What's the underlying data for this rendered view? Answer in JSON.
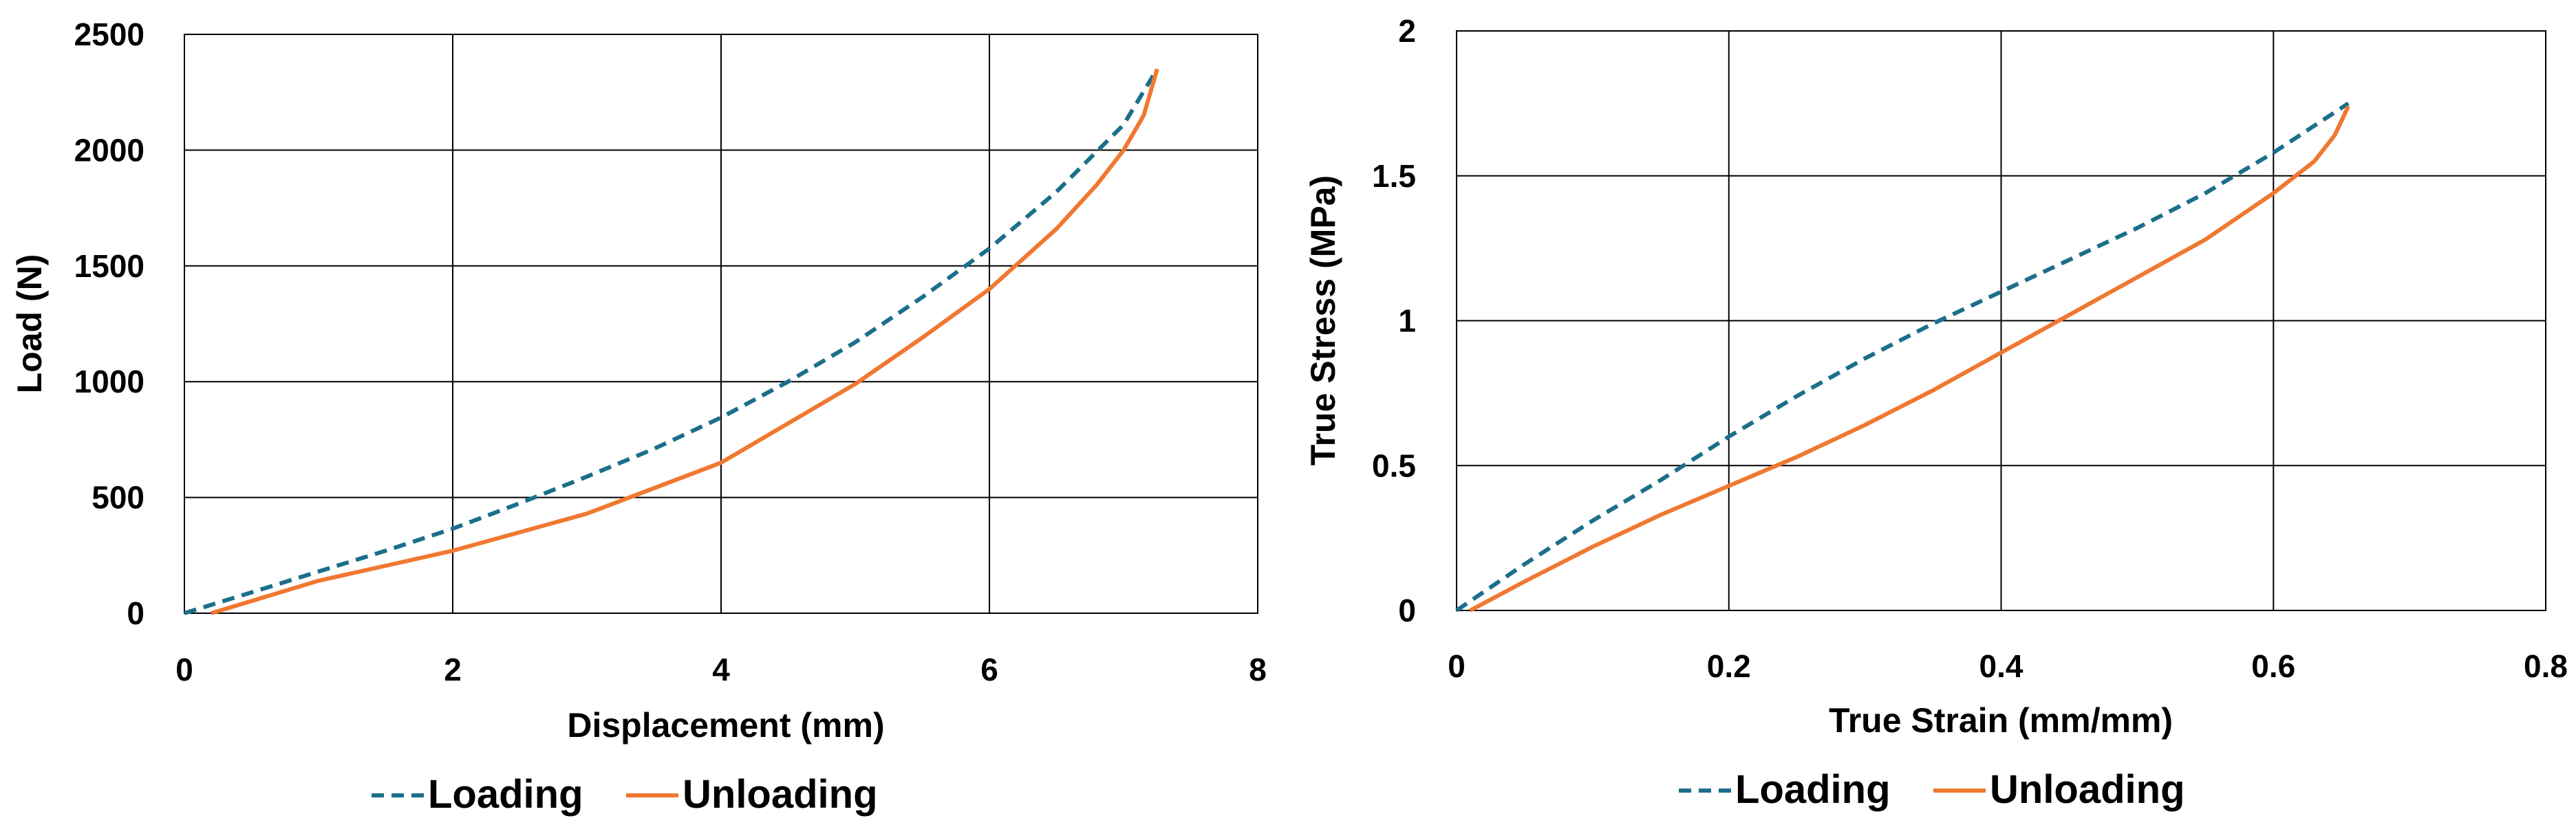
{
  "chart_data": [
    {
      "type": "line",
      "title": "",
      "xlabel": "Displacement (mm)",
      "ylabel": "Load (N)",
      "xlim": [
        0,
        8
      ],
      "ylim": [
        0,
        2500
      ],
      "xticks": [
        "0",
        "2",
        "4",
        "6",
        "8"
      ],
      "yticks": [
        "0",
        "500",
        "1000",
        "1500",
        "2000",
        "2500"
      ],
      "grid": true,
      "legend_position": "bottom-center",
      "series": [
        {
          "name": "Loading",
          "color": "#1b6f8a",
          "style": "dashed",
          "x": [
            0,
            0.5,
            1,
            1.5,
            2,
            2.5,
            3,
            3.5,
            4,
            4.5,
            5,
            5.5,
            6,
            6.5,
            7,
            7.25
          ],
          "y": [
            0,
            90,
            180,
            270,
            365,
            475,
            590,
            710,
            845,
            1000,
            1170,
            1365,
            1575,
            1820,
            2110,
            2350
          ]
        },
        {
          "name": "Unloading",
          "color": "#f07830",
          "style": "solid",
          "x": [
            0.2,
            1,
            2,
            3,
            4,
            5,
            5.5,
            6,
            6.5,
            6.8,
            7,
            7.15,
            7.25
          ],
          "y": [
            0,
            140,
            270,
            430,
            650,
            990,
            1190,
            1400,
            1660,
            1850,
            2000,
            2150,
            2350
          ]
        }
      ]
    },
    {
      "type": "line",
      "title": "",
      "xlabel": "True Strain (mm/mm)",
      "ylabel": "True Stress (MPa)",
      "xlim": [
        0,
        0.8
      ],
      "ylim": [
        0,
        2
      ],
      "xticks": [
        "0",
        "0.2",
        "0.4",
        "0.6",
        "0.8"
      ],
      "yticks": [
        "0",
        "0.5",
        "1",
        "1.5",
        "2"
      ],
      "grid": true,
      "legend_position": "bottom-center",
      "series": [
        {
          "name": "Loading",
          "color": "#1b6f8a",
          "style": "dashed",
          "x": [
            0,
            0.05,
            0.1,
            0.15,
            0.2,
            0.25,
            0.3,
            0.35,
            0.4,
            0.45,
            0.5,
            0.55,
            0.6,
            0.655
          ],
          "y": [
            0,
            0.16,
            0.31,
            0.45,
            0.6,
            0.74,
            0.87,
            0.99,
            1.1,
            1.21,
            1.32,
            1.44,
            1.58,
            1.75
          ]
        },
        {
          "name": "Unloading",
          "color": "#f07830",
          "style": "solid",
          "x": [
            0.01,
            0.05,
            0.1,
            0.15,
            0.2,
            0.25,
            0.3,
            0.35,
            0.4,
            0.45,
            0.5,
            0.55,
            0.6,
            0.63,
            0.645,
            0.655
          ],
          "y": [
            0,
            0.1,
            0.22,
            0.33,
            0.43,
            0.53,
            0.64,
            0.76,
            0.89,
            1.02,
            1.15,
            1.28,
            1.44,
            1.55,
            1.64,
            1.74
          ]
        }
      ]
    }
  ]
}
